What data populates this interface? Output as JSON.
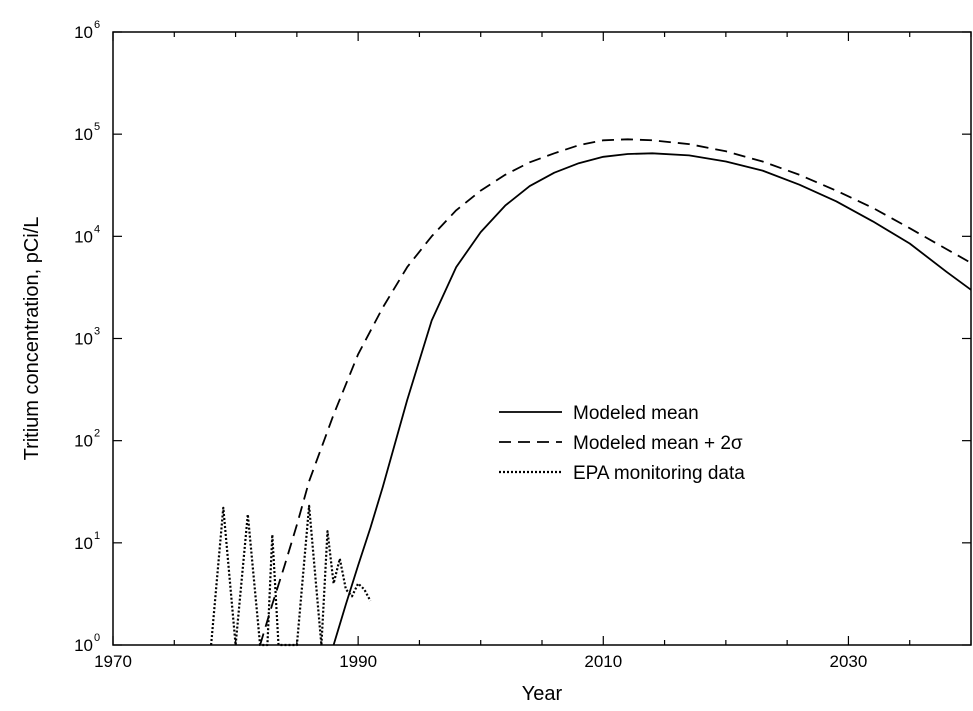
{
  "chart_data": {
    "type": "line",
    "title": "",
    "xlabel": "Year",
    "ylabel": "Tritium concentration, pCi/L",
    "xlim": [
      1970,
      2040
    ],
    "ylim": [
      1,
      1000000
    ],
    "yscale": "log",
    "x_tick_labels": [
      "1970",
      "1990",
      "2010",
      "2030"
    ],
    "x_ticks": [
      1970,
      1990,
      2010,
      2030
    ],
    "y_tick_labels": [
      {
        "base": "10",
        "exp": "0"
      },
      {
        "base": "10",
        "exp": "1"
      },
      {
        "base": "10",
        "exp": "2"
      },
      {
        "base": "10",
        "exp": "3"
      },
      {
        "base": "10",
        "exp": "4"
      },
      {
        "base": "10",
        "exp": "5"
      },
      {
        "base": "10",
        "exp": "6"
      }
    ],
    "y_ticks": [
      1,
      10,
      100,
      1000,
      10000,
      100000,
      1000000
    ],
    "legend_position": "center-right",
    "series": [
      {
        "name": "Modeled mean",
        "style": "solid",
        "x": [
          1988,
          1989,
          1990,
          1991,
          1992,
          1994,
          1996,
          1998,
          2000,
          2002,
          2004,
          2006,
          2008,
          2010,
          2012,
          2014,
          2017,
          2020,
          2023,
          2026,
          2029,
          2032,
          2035,
          2038,
          2040
        ],
        "y": [
          1,
          2.5,
          6,
          14,
          35,
          250,
          1500,
          5000,
          11000,
          20000,
          31000,
          42000,
          52000,
          60000,
          64000,
          65000,
          62000,
          54000,
          44000,
          32000,
          22000,
          14000,
          8500,
          4500,
          3000
        ]
      },
      {
        "name": "Modeled mean + 2σ",
        "style": "dashed",
        "x": [
          1982,
          1983,
          1984,
          1985,
          1986,
          1988,
          1990,
          1992,
          1994,
          1996,
          1998,
          2000,
          2002,
          2004,
          2006,
          2008,
          2010,
          2012,
          2014,
          2017,
          2020,
          2023,
          2026,
          2029,
          2032,
          2035,
          2038,
          2040
        ],
        "y": [
          1,
          2.5,
          6,
          15,
          40,
          180,
          700,
          2000,
          5000,
          10000,
          18000,
          28000,
          40000,
          53000,
          65000,
          78000,
          87000,
          89000,
          87000,
          80000,
          68000,
          54000,
          40000,
          28000,
          19000,
          12000,
          7500,
          5500
        ]
      },
      {
        "name": "EPA monitoring data",
        "style": "dotted",
        "x": [
          1978,
          1979,
          1980,
          1981,
          1982,
          1982.6,
          1983,
          1983.5,
          1984,
          1984.5,
          1985,
          1986,
          1987,
          1987.5,
          1988,
          1988.5,
          1989,
          1989.5,
          1990,
          1990.5,
          1991
        ],
        "y": [
          1,
          22,
          1,
          19,
          1,
          1,
          12,
          1,
          1,
          1,
          1,
          23,
          1,
          13,
          4,
          7,
          3.5,
          3,
          4,
          3.5,
          2.7
        ]
      }
    ]
  }
}
